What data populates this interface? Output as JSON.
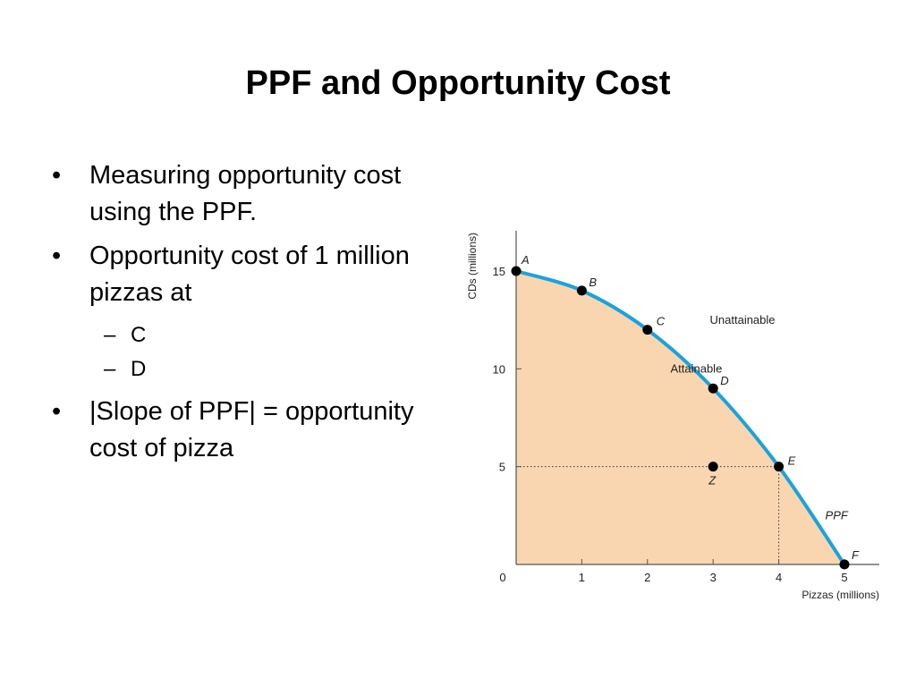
{
  "slide": {
    "title": "PPF and Opportunity Cost",
    "bullets": [
      {
        "text": "Measuring opportunity cost using the PPF."
      },
      {
        "text": "Opportunity cost of 1 million pizzas at",
        "sub": [
          "C",
          "D"
        ]
      },
      {
        "text": "|Slope of PPF| = opportunity cost of pizza"
      }
    ],
    "bullet_glyph": "•",
    "sub_glyph": "–"
  },
  "chart_data": {
    "type": "line",
    "xlabel": "Pizzas (millions)",
    "ylabel": "CDs (millions)",
    "xlim": [
      0,
      5
    ],
    "ylim": [
      0,
      15
    ],
    "x_ticks": [
      "0",
      "1",
      "2",
      "3",
      "4",
      "5"
    ],
    "y_ticks": [
      "5",
      "10",
      "15"
    ],
    "series": [
      {
        "name": "PPF",
        "points": [
          {
            "label": "A",
            "x": 0,
            "y": 15
          },
          {
            "label": "B",
            "x": 1,
            "y": 14
          },
          {
            "label": "C",
            "x": 2,
            "y": 12
          },
          {
            "label": "D",
            "x": 3,
            "y": 9
          },
          {
            "label": "E",
            "x": 4,
            "y": 5
          },
          {
            "label": "F",
            "x": 5,
            "y": 0
          }
        ]
      }
    ],
    "extra_points": [
      {
        "label": "Z",
        "x": 3,
        "y": 5
      }
    ],
    "regions": {
      "attainable": "Attainable",
      "unattainable": "Unattainable"
    },
    "reference_lines": {
      "x": 4,
      "y": 5
    },
    "colors": {
      "curve": "#1aa3dc",
      "fill": "#fad6b0",
      "point": "#000000"
    }
  }
}
